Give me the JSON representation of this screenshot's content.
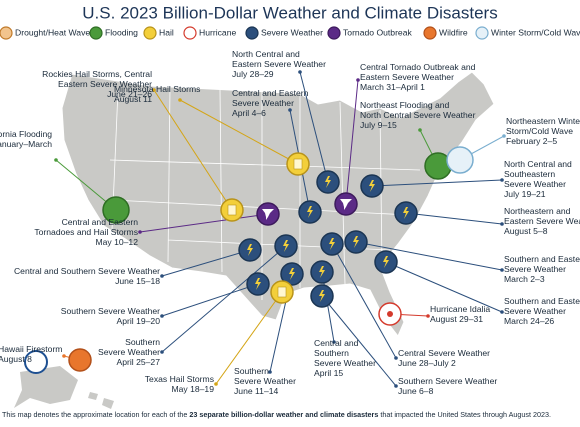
{
  "title": "U.S. 2023 Billion-Dollar Weather and Climate Disasters",
  "legend": [
    "Drought/Heat Wave",
    "Flooding",
    "Hail",
    "Hurricane",
    "Severe Weather",
    "Tornado Outbreak",
    "Wildfire",
    "Winter Storm/Cold Wave"
  ],
  "events": [
    {
      "lines": [
        "Rockies Hail Storms, Central",
        "Eastern Severe Weather",
        "June 21–26"
      ]
    },
    {
      "lines": [
        "Minnesota Hail Storms",
        "August 11"
      ]
    },
    {
      "lines": [
        "North Central and",
        "Eastern Severe Weather",
        "July 28–29"
      ]
    },
    {
      "lines": [
        "Central and Eastern",
        "Severe Weather",
        "April 4–6"
      ]
    },
    {
      "lines": [
        "Central Tornado Outbreak and",
        "Eastern Severe Weather",
        "March 31–April 1"
      ]
    },
    {
      "lines": [
        "Northeast Flooding and",
        "North Central Severe Weather",
        "July 9–15"
      ]
    },
    {
      "lines": [
        "Northeastern Winter",
        "Storm/Cold Wave",
        "February 2–5"
      ]
    },
    {
      "lines": [
        "California Flooding",
        "January–March"
      ]
    },
    {
      "lines": [
        "North Central and",
        "Southeastern",
        "Severe Weather",
        "July 19–21"
      ]
    },
    {
      "lines": [
        "Northeastern and",
        "Eastern Severe Weather",
        "August 5–8"
      ]
    },
    {
      "lines": [
        "Central and Eastern",
        "Tornadoes and Hail Storms",
        "May 10–12"
      ]
    },
    {
      "lines": [
        "Southern and Eastern",
        "Severe Weather",
        "March 2–3"
      ]
    },
    {
      "lines": [
        "Central and Southern Severe Weather",
        "June 15–18"
      ]
    },
    {
      "lines": [
        "Southern and Eastern",
        "Severe Weather",
        "March 24–26"
      ]
    },
    {
      "lines": [
        "Southern Severe Weather",
        "April 19–20"
      ]
    },
    {
      "lines": [
        "Hurricane Idalia",
        "August 29–31"
      ]
    },
    {
      "lines": [
        "Southern",
        "Severe Weather",
        "April 25–27"
      ]
    },
    {
      "lines": [
        "Hawaii Firestorm",
        "August 8"
      ]
    },
    {
      "lines": [
        "Central and",
        "Southern",
        "Severe Weather",
        "April 15"
      ]
    },
    {
      "lines": [
        "Central Severe Weather",
        "June 28–July 2"
      ]
    },
    {
      "lines": [
        "Southern",
        "Severe Weather",
        "June 11–14"
      ]
    },
    {
      "lines": [
        "Southern Severe Weather",
        "June 6–8"
      ]
    },
    {
      "lines": [
        "Texas Hail Storms",
        "May 18–19"
      ]
    }
  ],
  "footnote": {
    "text": "This map denotes the approximate location for each of the",
    "bold": "23 separate billion-dollar weather and climate disasters",
    "tail": "that impacted the United States through August 2023."
  }
}
